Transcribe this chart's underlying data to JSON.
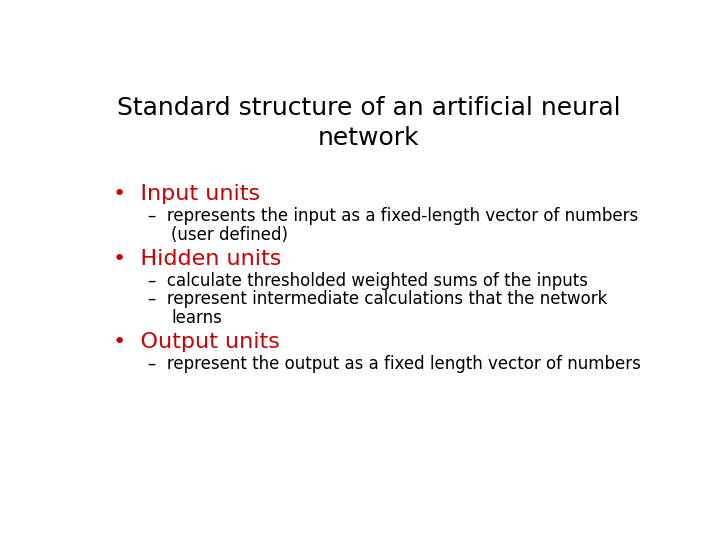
{
  "title_line1": "Standard structure of an artificial neural",
  "title_line2": "network",
  "title_color": "#000000",
  "title_fontsize": 18,
  "background_color": "#ffffff",
  "bullet_color": "#cc0000",
  "bullet_fontsize": 16,
  "sub_color": "#000000",
  "sub_fontsize": 12,
  "items": [
    {
      "bullet": "Input units",
      "subs": [
        [
          "represents the input as a fixed-length vector of numbers",
          "(user defined)"
        ]
      ]
    },
    {
      "bullet": "Hidden units",
      "subs": [
        [
          "calculate thresholded weighted sums of the inputs"
        ],
        [
          "represent intermediate calculations that the network",
          "learns"
        ]
      ]
    },
    {
      "bullet": "Output units",
      "subs": [
        [
          "represent the output as a fixed length vector of numbers"
        ]
      ]
    }
  ]
}
